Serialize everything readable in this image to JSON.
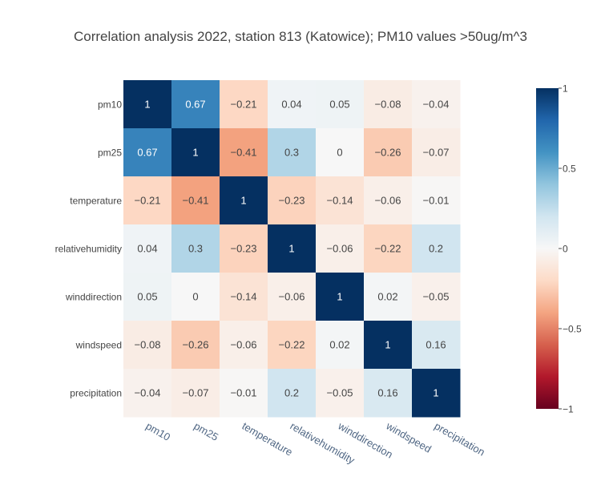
{
  "chart_data": {
    "type": "heatmap",
    "title": "Correlation analysis 2022, station 813 (Katowice); PM10 values >50ug/m^3",
    "x_labels": [
      "pm10",
      "pm25",
      "temperature",
      "relativehumidity",
      "winddirection",
      "windspeed",
      "precipitation"
    ],
    "y_labels": [
      "pm10",
      "pm25",
      "temperature",
      "relativehumidity",
      "winddirection",
      "windspeed",
      "precipitation"
    ],
    "z": [
      [
        1,
        0.67,
        -0.21,
        0.04,
        0.05,
        -0.08,
        -0.04
      ],
      [
        0.67,
        1,
        -0.41,
        0.3,
        0,
        -0.26,
        -0.07
      ],
      [
        -0.21,
        -0.41,
        1,
        -0.23,
        -0.14,
        -0.06,
        -0.01
      ],
      [
        0.04,
        0.3,
        -0.23,
        1,
        -0.06,
        -0.22,
        0.2
      ],
      [
        0.05,
        0,
        -0.14,
        -0.06,
        1,
        0.02,
        -0.05
      ],
      [
        -0.08,
        -0.26,
        -0.06,
        -0.22,
        0.02,
        1,
        0.16
      ],
      [
        -0.04,
        -0.07,
        -0.01,
        0.2,
        -0.05,
        0.16,
        1
      ]
    ],
    "zlim": [
      -1,
      1
    ],
    "colorscale": "RdBu",
    "colorbar_ticks": [
      1,
      0.5,
      0,
      -0.5,
      -1
    ],
    "colorbar_tick_labels": [
      "1",
      "0.5",
      "0",
      "−0.5",
      "−1"
    ],
    "grid": false,
    "legend": "colorbar-right"
  }
}
